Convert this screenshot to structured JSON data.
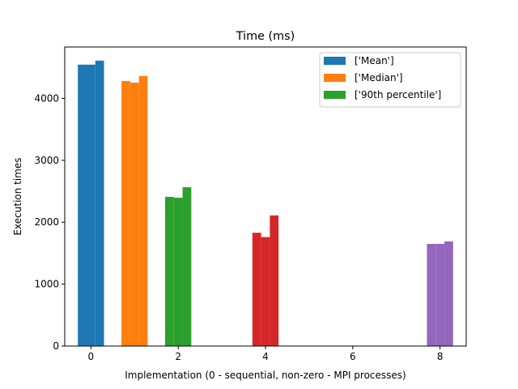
{
  "chart_data": {
    "type": "bar",
    "title": "Time (ms)",
    "xlabel": "Implementation (0 - sequential, non-zero - MPI processes)",
    "ylabel": "Execution times",
    "xlim": [
      -0.6,
      8.6
    ],
    "ylim": [
      0,
      4830
    ],
    "xticks": [
      0,
      2,
      4,
      6,
      8
    ],
    "yticks": [
      0,
      1000,
      2000,
      3000,
      4000
    ],
    "bar_width": 0.2,
    "offsets": [
      -0.2,
      0,
      0.2
    ],
    "legend_placement": "upper right",
    "legend": [
      {
        "label": "['Mean']",
        "color": "#1f77b4"
      },
      {
        "label": "['Median']",
        "color": "#ff7f0e"
      },
      {
        "label": "['90th percentile']",
        "color": "#2ca02c"
      }
    ],
    "groups": [
      {
        "x": 0,
        "color": "#1f77b4",
        "values": [
          4545,
          4545,
          4610
        ]
      },
      {
        "x": 1,
        "color": "#ff7f0e",
        "values": [
          4280,
          4255,
          4360
        ]
      },
      {
        "x": 2,
        "color": "#2ca02c",
        "values": [
          2410,
          2395,
          2565
        ]
      },
      {
        "x": 4,
        "color": "#d62728",
        "values": [
          1830,
          1760,
          2110
        ]
      },
      {
        "x": 8,
        "color": "#9467bd",
        "values": [
          1650,
          1650,
          1690
        ]
      }
    ]
  }
}
